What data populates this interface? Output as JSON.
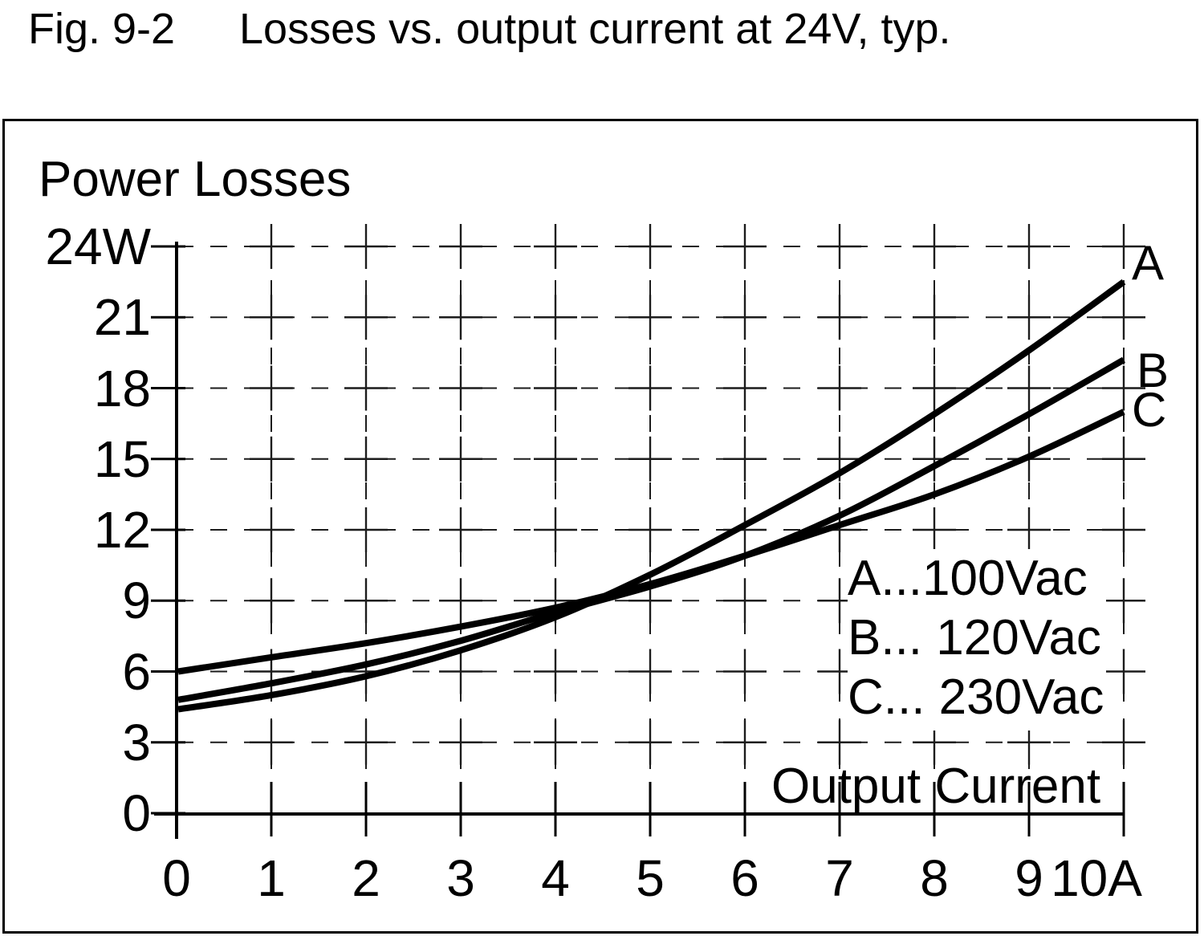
{
  "figure": {
    "label": "Fig. 9-2",
    "caption": "Losses vs. output current at 24V, typ."
  },
  "chart_data": {
    "type": "line",
    "title": "Power Losses",
    "xlabel": "Output Current",
    "x_unit": "A",
    "y_unit": "W",
    "xlim": [
      0,
      10
    ],
    "ylim": [
      0,
      24
    ],
    "grid": true,
    "grid_style": "dashed-with-crosses",
    "legend_position": "inside-right",
    "x_ticks": [
      0,
      1,
      2,
      3,
      4,
      5,
      6,
      7,
      8,
      9,
      10
    ],
    "x_tick_labels": [
      "0",
      "1",
      "2",
      "3",
      "4",
      "5",
      "6",
      "7",
      "8",
      "9",
      "10A"
    ],
    "y_ticks": [
      0,
      3,
      6,
      9,
      12,
      15,
      18,
      21,
      24
    ],
    "y_tick_labels": [
      "0",
      "3",
      "6",
      "9",
      "12",
      "15",
      "18",
      "21",
      "24W"
    ],
    "x": [
      0,
      1,
      2,
      3,
      4,
      5,
      6,
      7,
      8,
      9,
      10
    ],
    "series": [
      {
        "name": "A",
        "legend": "A...100Vac",
        "values": [
          4.4,
          5.0,
          5.8,
          6.9,
          8.3,
          10.1,
          12.2,
          14.4,
          16.9,
          19.6,
          22.5
        ]
      },
      {
        "name": "B",
        "legend": "B... 120Vac",
        "values": [
          4.8,
          5.5,
          6.3,
          7.3,
          8.5,
          9.6,
          10.9,
          12.6,
          14.7,
          16.9,
          19.2
        ]
      },
      {
        "name": "C",
        "legend": "C... 230Vac",
        "values": [
          6.0,
          6.6,
          7.2,
          7.9,
          8.7,
          9.7,
          10.9,
          12.2,
          13.5,
          15.1,
          17.0
        ]
      }
    ]
  },
  "colors": {
    "line": "#000000",
    "grid": "#1c1c1c",
    "axis": "#000000",
    "text": "#000000",
    "background": "#ffffff"
  }
}
